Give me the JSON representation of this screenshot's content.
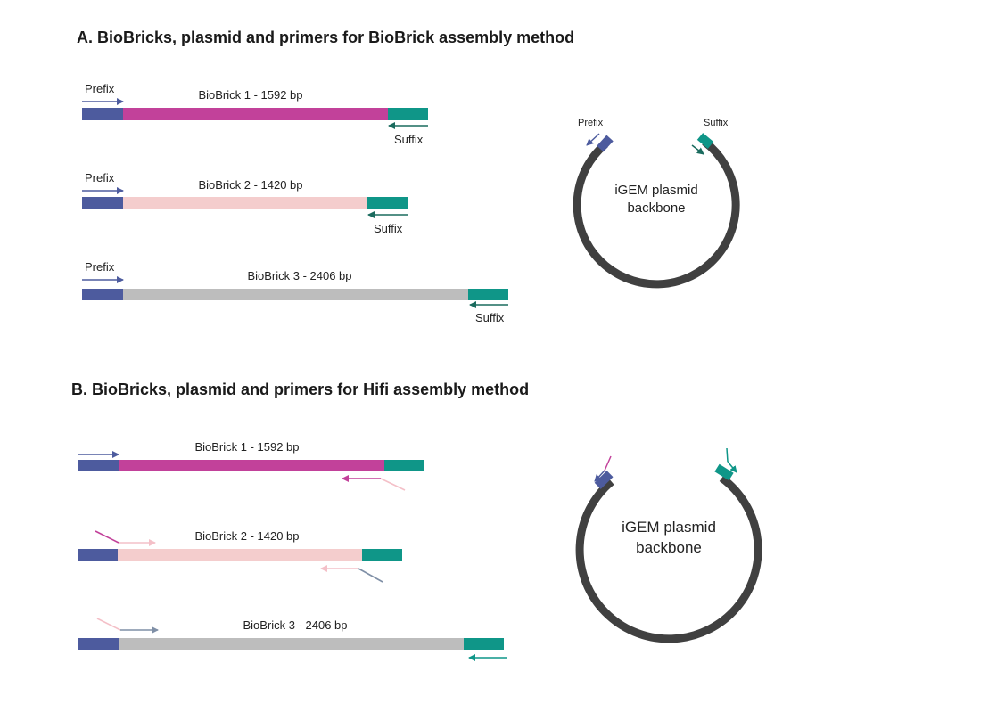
{
  "section_a": {
    "title": "A. BioBricks, plasmid and primers for BioBrick assembly method",
    "bricks": [
      {
        "label": "BioBrick 1 - 1592 bp",
        "prefix_label": "Prefix",
        "suffix_label": "Suffix",
        "color": "#c2419a"
      },
      {
        "label": "BioBrick 2 - 1420 bp",
        "prefix_label": "Prefix",
        "suffix_label": "Suffix",
        "color": "#f4cdcd"
      },
      {
        "label": "BioBrick 3  - 2406 bp",
        "prefix_label": "Prefix",
        "suffix_label": "Suffix",
        "color": "#bdbdbd"
      }
    ],
    "plasmid": {
      "line1": "iGEM plasmid",
      "line2": "backbone",
      "prefix_label": "Prefix",
      "suffix_label": "Suffix"
    }
  },
  "section_b": {
    "title": "B. BioBricks, plasmid and primers for Hifi assembly method",
    "bricks": [
      {
        "label": "BioBrick 1 - 1592 bp",
        "color": "#c2419a"
      },
      {
        "label": "BioBrick 2 - 1420 bp",
        "color": "#f4cdcd"
      },
      {
        "label": "BioBrick 3  - 2406 bp",
        "color": "#bdbdbd"
      }
    ],
    "plasmid": {
      "line1": "iGEM plasmid",
      "line2": "backbone"
    }
  },
  "colors": {
    "prefix": "#4d5b9e",
    "suffix": "#0f9688",
    "suffix_arrow": "#1a6b5e",
    "backbone": "#404040",
    "magenta": "#c2419a",
    "pink": "#f4c0c8",
    "slate": "#7f8fa6"
  }
}
